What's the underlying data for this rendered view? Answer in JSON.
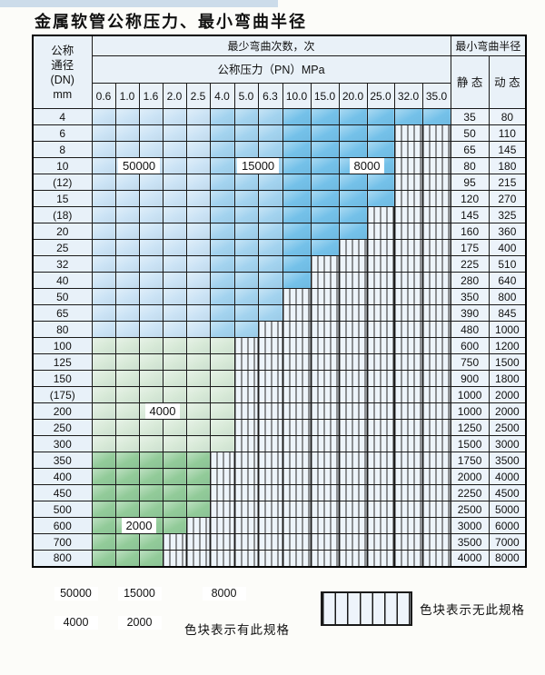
{
  "title": "金属软管公称压力、最小弯曲半径",
  "table": {
    "dn_header": {
      "l1": "公称",
      "l2": "通径",
      "l3": "(DN)",
      "l4": "mm"
    },
    "bend_cycles_header": "最少弯曲次数，次",
    "pressure_header": "公称压力（PN）MPa",
    "min_radius_header": "最小弯曲半径",
    "static_header": "静 态",
    "dynamic_header": "动 态",
    "pressures": [
      "0.6",
      "1.0",
      "1.6",
      "2.0",
      "2.5",
      "4.0",
      "5.0",
      "6.3",
      "10.0",
      "15.0",
      "20.0",
      "25.0",
      "32.0",
      "35.0"
    ],
    "overlays": [
      {
        "text": "50000",
        "row": "10",
        "col": "1.0"
      },
      {
        "text": "15000",
        "row": "10",
        "col": "5.0"
      },
      {
        "text": "8000",
        "row": "10",
        "col": "20.0"
      },
      {
        "text": "4000",
        "row": "200",
        "col": "1.6"
      },
      {
        "text": "2000",
        "row": "600",
        "col": "1.0"
      }
    ]
  },
  "colors": {
    "blue_50000": "#cbe3f5",
    "blue_15000": "#a3d3ef",
    "blue_8000": "#74c1e9",
    "green_4000": "#d7e9d7",
    "green_2000": "#92cb99",
    "no_spec_bg": "#edf4fa"
  },
  "legend": {
    "items": [
      {
        "label": "50000",
        "colorClass": "c1"
      },
      {
        "label": "15000",
        "colorClass": "c2"
      },
      {
        "label": "8000",
        "colorClass": "c3"
      },
      {
        "label": "4000",
        "colorClass": "g1"
      },
      {
        "label": "2000",
        "colorClass": "g2"
      }
    ],
    "has_spec_text": "色块表示有此规格",
    "no_spec_text": "色块表示无此规格"
  },
  "chart_data": {
    "type": "table",
    "title": "金属软管公称压力、最小弯曲半径",
    "pressure_columns_MPa": [
      "0.6",
      "1.0",
      "1.6",
      "2.0",
      "2.5",
      "4.0",
      "5.0",
      "6.3",
      "10.0",
      "15.0",
      "20.0",
      "25.0",
      "32.0",
      "35.0"
    ],
    "cycle_bands_blue_rows": {
      "0.6-2.5": 50000,
      "4.0-6.3": 15000,
      "10.0-35.0": 8000
    },
    "cycle_green_light_rows": 4000,
    "cycle_green_dark_rows": 2000,
    "rows": [
      {
        "dn": "4",
        "group": "blue",
        "max_pn": "35.0",
        "radius_static": "35",
        "radius_dynamic": "80"
      },
      {
        "dn": "6",
        "group": "blue",
        "max_pn": "25.0",
        "radius_static": "50",
        "radius_dynamic": "110"
      },
      {
        "dn": "8",
        "group": "blue",
        "max_pn": "25.0",
        "radius_static": "65",
        "radius_dynamic": "145"
      },
      {
        "dn": "10",
        "group": "blue",
        "max_pn": "25.0",
        "radius_static": "80",
        "radius_dynamic": "180"
      },
      {
        "dn": "(12)",
        "group": "blue",
        "max_pn": "25.0",
        "radius_static": "95",
        "radius_dynamic": "215"
      },
      {
        "dn": "15",
        "group": "blue",
        "max_pn": "25.0",
        "radius_static": "120",
        "radius_dynamic": "270"
      },
      {
        "dn": "(18)",
        "group": "blue",
        "max_pn": "20.0",
        "radius_static": "145",
        "radius_dynamic": "325"
      },
      {
        "dn": "20",
        "group": "blue",
        "max_pn": "20.0",
        "radius_static": "160",
        "radius_dynamic": "360"
      },
      {
        "dn": "25",
        "group": "blue",
        "max_pn": "15.0",
        "radius_static": "175",
        "radius_dynamic": "400"
      },
      {
        "dn": "32",
        "group": "blue",
        "max_pn": "10.0",
        "radius_static": "225",
        "radius_dynamic": "510"
      },
      {
        "dn": "40",
        "group": "blue",
        "max_pn": "10.0",
        "radius_static": "280",
        "radius_dynamic": "640"
      },
      {
        "dn": "50",
        "group": "blue",
        "max_pn": "6.3",
        "radius_static": "350",
        "radius_dynamic": "800"
      },
      {
        "dn": "65",
        "group": "blue",
        "max_pn": "6.3",
        "radius_static": "390",
        "radius_dynamic": "845"
      },
      {
        "dn": "80",
        "group": "blue",
        "max_pn": "5.0",
        "radius_static": "480",
        "radius_dynamic": "1000"
      },
      {
        "dn": "100",
        "group": "green1",
        "max_pn": "4.0",
        "radius_static": "600",
        "radius_dynamic": "1200"
      },
      {
        "dn": "125",
        "group": "green1",
        "max_pn": "4.0",
        "radius_static": "750",
        "radius_dynamic": "1500"
      },
      {
        "dn": "150",
        "group": "green1",
        "max_pn": "4.0",
        "radius_static": "900",
        "radius_dynamic": "1800"
      },
      {
        "dn": "(175)",
        "group": "green1",
        "max_pn": "4.0",
        "radius_static": "1000",
        "radius_dynamic": "2000"
      },
      {
        "dn": "200",
        "group": "green1",
        "max_pn": "4.0",
        "radius_static": "1000",
        "radius_dynamic": "2000"
      },
      {
        "dn": "250",
        "group": "green1",
        "max_pn": "4.0",
        "radius_static": "1250",
        "radius_dynamic": "2500"
      },
      {
        "dn": "300",
        "group": "green1",
        "max_pn": "4.0",
        "radius_static": "1500",
        "radius_dynamic": "3000"
      },
      {
        "dn": "350",
        "group": "green2",
        "max_pn": "2.5",
        "radius_static": "1750",
        "radius_dynamic": "3500"
      },
      {
        "dn": "400",
        "group": "green2",
        "max_pn": "2.5",
        "radius_static": "2000",
        "radius_dynamic": "4000"
      },
      {
        "dn": "450",
        "group": "green2",
        "max_pn": "2.5",
        "radius_static": "2250",
        "radius_dynamic": "4500"
      },
      {
        "dn": "500",
        "group": "green2",
        "max_pn": "2.5",
        "radius_static": "2500",
        "radius_dynamic": "5000"
      },
      {
        "dn": "600",
        "group": "green2",
        "max_pn": "2.0",
        "radius_static": "3000",
        "radius_dynamic": "6000"
      },
      {
        "dn": "700",
        "group": "green2",
        "max_pn": "1.6",
        "radius_static": "3500",
        "radius_dynamic": "7000"
      },
      {
        "dn": "800",
        "group": "green2",
        "max_pn": "1.6",
        "radius_static": "4000",
        "radius_dynamic": "8000"
      }
    ]
  }
}
